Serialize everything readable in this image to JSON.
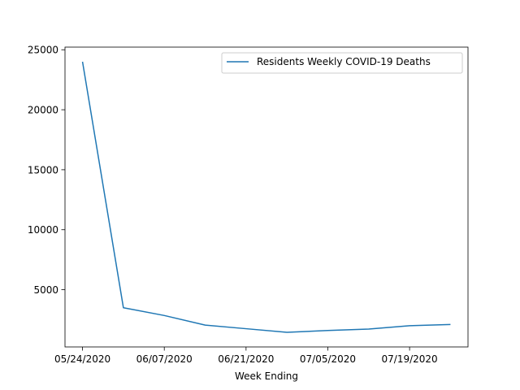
{
  "chart_data": {
    "type": "line",
    "title": "",
    "xlabel": "Week Ending",
    "ylabel": "",
    "x": [
      "05/24/2020",
      "05/31/2020",
      "06/07/2020",
      "06/14/2020",
      "06/21/2020",
      "06/28/2020",
      "07/05/2020",
      "07/12/2020",
      "07/19/2020",
      "07/26/2020"
    ],
    "series": [
      {
        "name": "Residents Weekly COVID-19 Deaths",
        "color": "#1f77b4",
        "values": [
          24000,
          3500,
          2850,
          2050,
          1750,
          1450,
          1600,
          1720,
          2000,
          2100
        ]
      }
    ],
    "xticks": [
      "05/24/2020",
      "06/07/2020",
      "06/21/2020",
      "07/05/2020",
      "07/19/2020"
    ],
    "yticks": [
      5000,
      10000,
      15000,
      20000,
      25000
    ],
    "xlim": [
      "05/21/2020",
      "07/29/2020"
    ],
    "ylim": [
      230,
      25220
    ],
    "grid": false,
    "legend_position": "upper right"
  }
}
